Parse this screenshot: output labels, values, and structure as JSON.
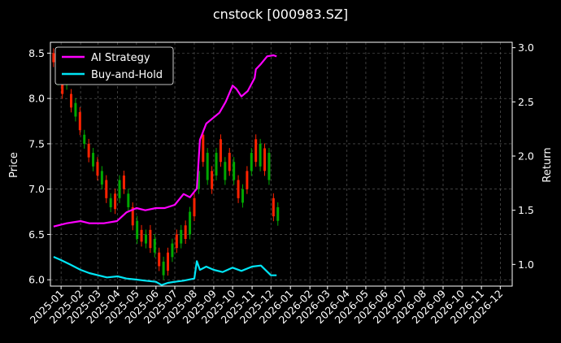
{
  "chart_data": {
    "type": "line",
    "title": "cnstock [000983.SZ]",
    "xlabel": "",
    "ylabel": "Price",
    "y2label": "Return",
    "x_ticks": [
      "2025-01",
      "2025-02",
      "2025-03",
      "2025-04",
      "2025-05",
      "2025-06",
      "2025-07",
      "2025-08",
      "2025-09",
      "2025-10",
      "2025-11",
      "2025-12",
      "2026-01",
      "2026-02",
      "2026-03",
      "2026-04",
      "2026-05",
      "2026-06",
      "2026-07",
      "2026-08",
      "2026-09",
      "2026-10",
      "2026-11",
      "2026-12"
    ],
    "xlim": [
      "2024-12-15",
      "2026-12-20"
    ],
    "ylim": [
      5.93,
      8.62
    ],
    "y_ticks": [
      "6.0",
      "6.5",
      "7.0",
      "7.5",
      "8.0",
      "8.5"
    ],
    "y2lim": [
      0.8,
      3.05
    ],
    "y2_ticks": [
      "1.0",
      "1.5",
      "2.0",
      "2.5",
      "3.0"
    ],
    "grid": true,
    "legend_position": "top-left",
    "colors": {
      "ai_strategy": "#ff00ff",
      "buy_and_hold": "#00e5f5",
      "candle_up": "#ff2200",
      "candle_down": "#00a800",
      "grid": "#666666",
      "background": "#000000"
    },
    "candles": [
      [
        "2024-12-20",
        8.5,
        8.4
      ],
      [
        "2024-12-27",
        8.38,
        8.2
      ],
      [
        "2025-01-03",
        8.25,
        8.05
      ],
      [
        "2025-01-10",
        8.35,
        8.15
      ],
      [
        "2025-01-17",
        8.05,
        7.9
      ],
      [
        "2025-01-24",
        7.95,
        7.8
      ],
      [
        "2025-01-31",
        7.85,
        7.65
      ],
      [
        "2025-02-07",
        7.6,
        7.5
      ],
      [
        "2025-02-14",
        7.5,
        7.35
      ],
      [
        "2025-02-21",
        7.4,
        7.25
      ],
      [
        "2025-02-28",
        7.3,
        7.15
      ],
      [
        "2025-03-07",
        7.2,
        7.05
      ],
      [
        "2025-03-14",
        7.1,
        6.9
      ],
      [
        "2025-03-21",
        6.9,
        6.8
      ],
      [
        "2025-03-28",
        6.95,
        6.78
      ],
      [
        "2025-04-04",
        7.1,
        6.9
      ],
      [
        "2025-04-11",
        7.15,
        7.0
      ],
      [
        "2025-04-18",
        6.95,
        6.8
      ],
      [
        "2025-04-25",
        6.8,
        6.6
      ],
      [
        "2025-05-02",
        6.65,
        6.45
      ],
      [
        "2025-05-09",
        6.55,
        6.42
      ],
      [
        "2025-05-16",
        6.5,
        6.4
      ],
      [
        "2025-05-23",
        6.55,
        6.35
      ],
      [
        "2025-05-30",
        6.45,
        6.3
      ],
      [
        "2025-06-06",
        6.3,
        6.15
      ],
      [
        "2025-06-13",
        6.2,
        6.05
      ],
      [
        "2025-06-20",
        6.3,
        6.1
      ],
      [
        "2025-06-27",
        6.4,
        6.25
      ],
      [
        "2025-07-04",
        6.5,
        6.35
      ],
      [
        "2025-07-11",
        6.55,
        6.4
      ],
      [
        "2025-07-18",
        6.6,
        6.45
      ],
      [
        "2025-07-25",
        6.75,
        6.5
      ],
      [
        "2025-08-01",
        6.9,
        6.7
      ],
      [
        "2025-08-08",
        7.2,
        7.0
      ],
      [
        "2025-08-15",
        7.6,
        7.3
      ],
      [
        "2025-08-22",
        7.4,
        7.1
      ],
      [
        "2025-08-29",
        7.2,
        7.0
      ],
      [
        "2025-09-05",
        7.4,
        7.15
      ],
      [
        "2025-09-12",
        7.55,
        7.3
      ],
      [
        "2025-09-19",
        7.3,
        7.1
      ],
      [
        "2025-09-26",
        7.4,
        7.2
      ],
      [
        "2025-10-03",
        7.3,
        7.1
      ],
      [
        "2025-10-10",
        7.1,
        6.9
      ],
      [
        "2025-10-17",
        7.0,
        6.85
      ],
      [
        "2025-10-24",
        7.2,
        7.0
      ],
      [
        "2025-10-31",
        7.4,
        7.2
      ],
      [
        "2025-11-07",
        7.55,
        7.3
      ],
      [
        "2025-11-14",
        7.5,
        7.25
      ],
      [
        "2025-11-21",
        7.45,
        7.2
      ],
      [
        "2025-11-28",
        7.4,
        7.1
      ],
      [
        "2025-12-05",
        6.9,
        6.7
      ],
      [
        "2025-12-12",
        6.8,
        6.65
      ]
    ],
    "series": [
      {
        "name": "AI Strategy",
        "dates": [
          "2024-12-20",
          "2025-01-10",
          "2025-02-01",
          "2025-02-15",
          "2025-03-10",
          "2025-03-31",
          "2025-04-15",
          "2025-05-01",
          "2025-05-15",
          "2025-06-01",
          "2025-06-15",
          "2025-07-01",
          "2025-07-15",
          "2025-07-25",
          "2025-08-05",
          "2025-08-10",
          "2025-08-20",
          "2025-09-10",
          "2025-09-20",
          "2025-10-01",
          "2025-10-07",
          "2025-10-15",
          "2025-10-25",
          "2025-11-05",
          "2025-11-07",
          "2025-11-15",
          "2025-11-25",
          "2025-12-05",
          "2025-12-10"
        ],
        "values": [
          1.35,
          1.38,
          1.4,
          1.38,
          1.38,
          1.4,
          1.48,
          1.52,
          1.5,
          1.52,
          1.52,
          1.55,
          1.65,
          1.62,
          1.7,
          2.15,
          2.3,
          2.4,
          2.5,
          2.65,
          2.62,
          2.55,
          2.6,
          2.72,
          2.8,
          2.85,
          2.92,
          2.93,
          2.92
        ]
      },
      {
        "name": "Buy-and-Hold",
        "dates": [
          "2024-12-20",
          "2025-01-01",
          "2025-01-15",
          "2025-02-01",
          "2025-02-15",
          "2025-03-01",
          "2025-03-15",
          "2025-04-01",
          "2025-04-15",
          "2025-05-01",
          "2025-05-15",
          "2025-06-01",
          "2025-06-10",
          "2025-06-20",
          "2025-07-01",
          "2025-07-15",
          "2025-08-01",
          "2025-08-05",
          "2025-08-10",
          "2025-08-20",
          "2025-09-01",
          "2025-09-15",
          "2025-10-01",
          "2025-10-15",
          "2025-11-01",
          "2025-11-15",
          "2025-12-01",
          "2025-12-10"
        ],
        "values": [
          1.07,
          1.04,
          1.0,
          0.95,
          0.92,
          0.9,
          0.88,
          0.89,
          0.87,
          0.86,
          0.85,
          0.84,
          0.81,
          0.83,
          0.84,
          0.85,
          0.87,
          1.03,
          0.95,
          0.98,
          0.95,
          0.93,
          0.97,
          0.94,
          0.98,
          0.99,
          0.9,
          0.9
        ]
      }
    ]
  }
}
